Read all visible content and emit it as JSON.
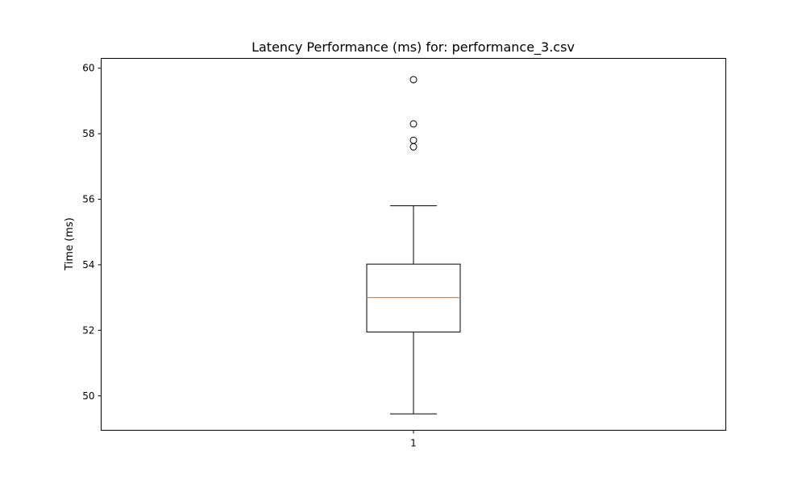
{
  "chart_data": {
    "type": "box",
    "title": "Latency Performance (ms) for: performance_3.csv",
    "xlabel": "",
    "ylabel": "Time (ms)",
    "ylim": [
      48.95,
      60.3
    ],
    "yticks": [
      50,
      52,
      54,
      56,
      58,
      60
    ],
    "ytick_labels": [
      "50",
      "52",
      "54",
      "56",
      "58",
      "60"
    ],
    "categories": [
      "1"
    ],
    "boxes": [
      {
        "category": "1",
        "whisker_low": 49.45,
        "q1": 51.95,
        "median": 53.0,
        "q3": 54.02,
        "whisker_high": 55.8,
        "outliers": [
          57.6,
          57.8,
          58.3,
          59.65
        ]
      }
    ],
    "colors": {
      "median": "#ff7f0e",
      "box": "#000000"
    },
    "grid": false
  }
}
